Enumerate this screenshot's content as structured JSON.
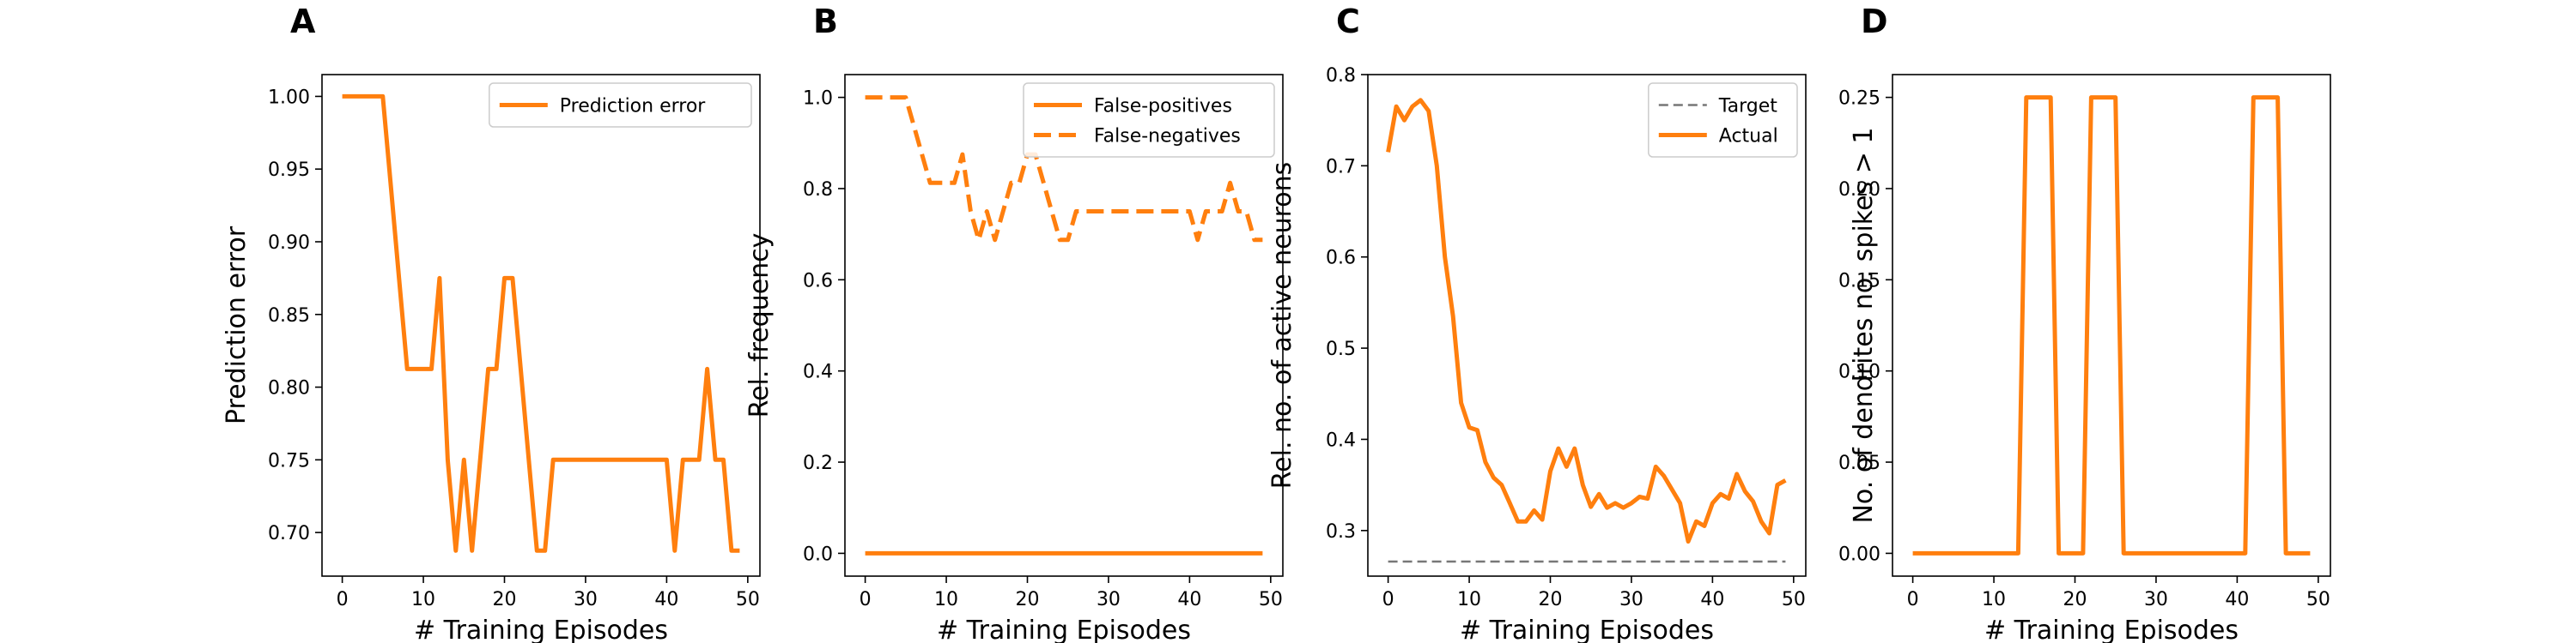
{
  "colors": {
    "orange": "#ff7f0e",
    "target": "#777777"
  },
  "chart_data": [
    {
      "type": "line",
      "panel": "A",
      "title": "",
      "xlabel": "# Training Episodes",
      "ylabel": "Prediction error",
      "xlim": [
        -2.5,
        51.5
      ],
      "ylim": [
        0.67,
        1.015
      ],
      "xticks": [
        0,
        10,
        20,
        30,
        40,
        50
      ],
      "yticks": [
        0.7,
        0.75,
        0.8,
        0.85,
        0.9,
        0.95,
        1.0
      ],
      "ytick_decimals": 2,
      "legend_position": "top-right",
      "series": [
        {
          "name": "Prediction error",
          "style": "solid",
          "x": [
            0,
            1,
            2,
            3,
            4,
            5,
            6,
            7,
            8,
            9,
            10,
            11,
            12,
            13,
            14,
            15,
            16,
            17,
            18,
            19,
            20,
            21,
            22,
            23,
            24,
            25,
            26,
            27,
            28,
            29,
            30,
            31,
            32,
            33,
            34,
            35,
            36,
            37,
            38,
            39,
            40,
            41,
            42,
            43,
            44,
            45,
            46,
            47,
            48,
            49
          ],
          "y": [
            1.0,
            1.0,
            1.0,
            1.0,
            1.0,
            1.0,
            0.9375,
            0.875,
            0.8125,
            0.8125,
            0.8125,
            0.8125,
            0.875,
            0.75,
            0.6875,
            0.75,
            0.6875,
            0.75,
            0.8125,
            0.8125,
            0.875,
            0.875,
            0.8125,
            0.75,
            0.6875,
            0.6875,
            0.75,
            0.75,
            0.75,
            0.75,
            0.75,
            0.75,
            0.75,
            0.75,
            0.75,
            0.75,
            0.75,
            0.75,
            0.75,
            0.75,
            0.75,
            0.6875,
            0.75,
            0.75,
            0.75,
            0.8125,
            0.75,
            0.75,
            0.6875,
            0.6875
          ]
        }
      ]
    },
    {
      "type": "line",
      "panel": "B",
      "title": "",
      "xlabel": "# Training Episodes",
      "ylabel": "Rel. frequency",
      "xlim": [
        -2.5,
        51.5
      ],
      "ylim": [
        -0.05,
        1.05
      ],
      "xticks": [
        0,
        10,
        20,
        30,
        40,
        50
      ],
      "yticks": [
        0.0,
        0.2,
        0.4,
        0.6,
        0.8,
        1.0
      ],
      "ytick_decimals": 1,
      "legend_position": "top-right",
      "series": [
        {
          "name": "False-positives",
          "style": "solid",
          "x": [
            0,
            1,
            2,
            3,
            4,
            5,
            6,
            7,
            8,
            9,
            10,
            11,
            12,
            13,
            14,
            15,
            16,
            17,
            18,
            19,
            20,
            21,
            22,
            23,
            24,
            25,
            26,
            27,
            28,
            29,
            30,
            31,
            32,
            33,
            34,
            35,
            36,
            37,
            38,
            39,
            40,
            41,
            42,
            43,
            44,
            45,
            46,
            47,
            48,
            49
          ],
          "y": [
            0,
            0,
            0,
            0,
            0,
            0,
            0,
            0,
            0,
            0,
            0,
            0,
            0,
            0,
            0,
            0,
            0,
            0,
            0,
            0,
            0,
            0,
            0,
            0,
            0,
            0,
            0,
            0,
            0,
            0,
            0,
            0,
            0,
            0,
            0,
            0,
            0,
            0,
            0,
            0,
            0,
            0,
            0,
            0,
            0,
            0,
            0,
            0,
            0,
            0
          ]
        },
        {
          "name": "False-negatives",
          "style": "dashed",
          "x": [
            0,
            1,
            2,
            3,
            4,
            5,
            6,
            7,
            8,
            9,
            10,
            11,
            12,
            13,
            14,
            15,
            16,
            17,
            18,
            19,
            20,
            21,
            22,
            23,
            24,
            25,
            26,
            27,
            28,
            29,
            30,
            31,
            32,
            33,
            34,
            35,
            36,
            37,
            38,
            39,
            40,
            41,
            42,
            43,
            44,
            45,
            46,
            47,
            48,
            49
          ],
          "y": [
            1.0,
            1.0,
            1.0,
            1.0,
            1.0,
            1.0,
            0.9375,
            0.875,
            0.8125,
            0.8125,
            0.8125,
            0.8125,
            0.875,
            0.75,
            0.6875,
            0.75,
            0.6875,
            0.75,
            0.8125,
            0.8125,
            0.875,
            0.875,
            0.8125,
            0.75,
            0.6875,
            0.6875,
            0.75,
            0.75,
            0.75,
            0.75,
            0.75,
            0.75,
            0.75,
            0.75,
            0.75,
            0.75,
            0.75,
            0.75,
            0.75,
            0.75,
            0.75,
            0.6875,
            0.75,
            0.75,
            0.75,
            0.8125,
            0.75,
            0.75,
            0.6875,
            0.6875
          ]
        }
      ]
    },
    {
      "type": "line",
      "panel": "C",
      "title": "",
      "xlabel": "# Training Episodes",
      "ylabel": "Rel. no. of active neurons",
      "xlim": [
        -2.5,
        51.5
      ],
      "ylim": [
        0.25,
        0.8
      ],
      "xticks": [
        0,
        10,
        20,
        30,
        40,
        50
      ],
      "yticks": [
        0.3,
        0.4,
        0.5,
        0.6,
        0.7,
        0.8
      ],
      "ytick_decimals": 1,
      "legend_position": "top-right",
      "series": [
        {
          "name": "Target",
          "style": "dashed-thin",
          "x": [
            0,
            49
          ],
          "y": [
            0.266,
            0.266
          ]
        },
        {
          "name": "Actual",
          "style": "solid",
          "x": [
            0,
            1,
            2,
            3,
            4,
            5,
            6,
            7,
            8,
            9,
            10,
            11,
            12,
            13,
            14,
            15,
            16,
            17,
            18,
            19,
            20,
            21,
            22,
            23,
            24,
            25,
            26,
            27,
            28,
            29,
            30,
            31,
            32,
            33,
            34,
            35,
            36,
            37,
            38,
            39,
            40,
            41,
            42,
            43,
            44,
            45,
            46,
            47,
            48,
            49
          ],
          "y": [
            0.715,
            0.765,
            0.75,
            0.765,
            0.772,
            0.76,
            0.7,
            0.6,
            0.535,
            0.44,
            0.413,
            0.41,
            0.375,
            0.358,
            0.35,
            0.33,
            0.31,
            0.31,
            0.322,
            0.312,
            0.365,
            0.39,
            0.37,
            0.39,
            0.35,
            0.326,
            0.34,
            0.325,
            0.33,
            0.325,
            0.33,
            0.337,
            0.335,
            0.37,
            0.36,
            0.345,
            0.33,
            0.288,
            0.31,
            0.305,
            0.33,
            0.34,
            0.335,
            0.362,
            0.343,
            0.332,
            0.31,
            0.297,
            0.35,
            0.355
          ]
        }
      ]
    },
    {
      "type": "line",
      "panel": "D",
      "title": "",
      "xlabel": "# Training Episodes",
      "ylabel": "No. of dendrites no. spikes > 1",
      "xlim": [
        -2.5,
        51.5
      ],
      "ylim": [
        -0.0125,
        0.2625
      ],
      "xticks": [
        0,
        10,
        20,
        30,
        40,
        50
      ],
      "yticks": [
        0.0,
        0.05,
        0.1,
        0.15,
        0.2,
        0.25
      ],
      "ytick_decimals": 2,
      "legend_position": "none",
      "series": [
        {
          "name": "",
          "style": "solid",
          "x": [
            0,
            1,
            2,
            3,
            4,
            5,
            6,
            7,
            8,
            9,
            10,
            11,
            12,
            13,
            14,
            15,
            16,
            17,
            18,
            19,
            20,
            21,
            22,
            23,
            24,
            25,
            26,
            27,
            28,
            29,
            30,
            31,
            32,
            33,
            34,
            35,
            36,
            37,
            38,
            39,
            40,
            41,
            42,
            43,
            44,
            45,
            46,
            47,
            48,
            49
          ],
          "y": [
            0,
            0,
            0,
            0,
            0,
            0,
            0,
            0,
            0,
            0,
            0,
            0,
            0,
            0,
            0.25,
            0.25,
            0.25,
            0.25,
            0,
            0,
            0,
            0,
            0.25,
            0.25,
            0.25,
            0.25,
            0,
            0,
            0,
            0,
            0,
            0,
            0,
            0,
            0,
            0,
            0,
            0,
            0,
            0,
            0,
            0,
            0.25,
            0.25,
            0.25,
            0.25,
            0,
            0,
            0,
            0
          ]
        }
      ]
    }
  ]
}
